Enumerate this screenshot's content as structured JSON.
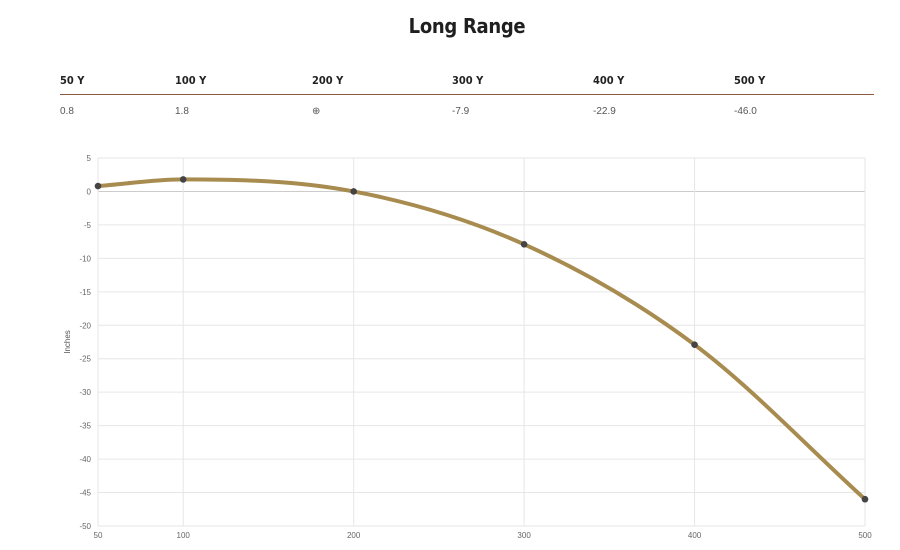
{
  "title": "Long Range",
  "table": {
    "headers": [
      "50 Y",
      "100 Y",
      "200 Y",
      "300 Y",
      "400 Y",
      "500 Y"
    ],
    "values": [
      "0.8",
      "1.8",
      "⊕",
      "-7.9",
      "-22.9",
      "-46.0"
    ]
  },
  "chart_data": {
    "type": "line",
    "x": [
      50,
      100,
      200,
      300,
      400,
      500
    ],
    "series": [
      {
        "values": [
          0.8,
          1.8,
          0,
          -7.9,
          -22.9,
          -46.0
        ],
        "color": "#a78b4f"
      }
    ],
    "xticks": [
      "50",
      "100",
      "200",
      "300",
      "400",
      "500"
    ],
    "yticks": [
      "5",
      "0",
      "-5",
      "-10",
      "-15",
      "-20",
      "-25",
      "-30",
      "-35",
      "-40",
      "-45",
      "-50"
    ],
    "ylabel": "Inches",
    "xlim": [
      50,
      500
    ],
    "ylim": [
      -50,
      5
    ],
    "grid": true,
    "point_color": "#444444",
    "grid_color": "#e6e6e6",
    "zero_line_color": "#cccccc"
  }
}
